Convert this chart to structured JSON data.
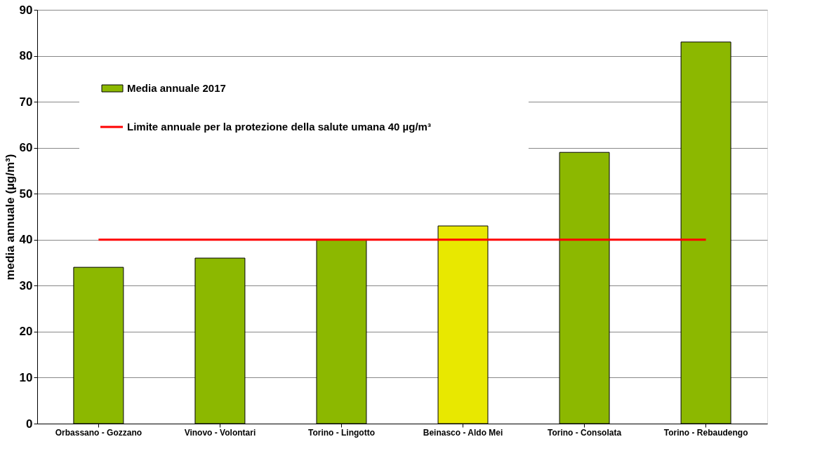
{
  "chart_data": {
    "type": "bar",
    "categories": [
      "Orbassano - Gozzano",
      "Vinovo - Volontari",
      "Torino - Lingotto",
      "Beinasco - Aldo Mei",
      "Torino - Consolata",
      "Torino - Rebaudengo"
    ],
    "ylabel": "media annuale (µg/m³)",
    "series": [
      {
        "name": "Media annuale 2017",
        "values": [
          34,
          36,
          40,
          43,
          59,
          83
        ],
        "colors": [
          "#8cb800",
          "#8cb800",
          "#8cb800",
          "#e8e800",
          "#8cb800",
          "#8cb800"
        ]
      },
      {
        "name": "Limite annuale per la protezione della salute umana 40 µg/m³",
        "type": "line",
        "color": "#ff0000",
        "values": [
          40,
          40,
          40,
          40,
          40,
          40
        ]
      }
    ],
    "ylim": [
      0,
      90
    ],
    "yticks": [
      0,
      10,
      20,
      30,
      40,
      50,
      60,
      70,
      80,
      90
    ],
    "grid": "y",
    "legend": "top left"
  }
}
